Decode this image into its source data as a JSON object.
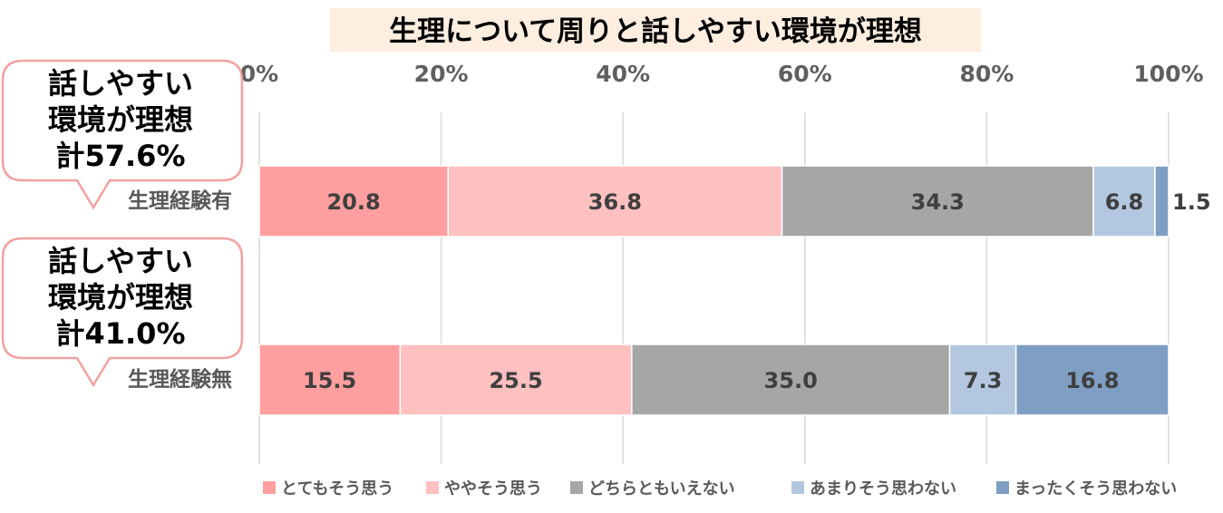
{
  "chart_data": {
    "type": "bar",
    "orientation": "horizontal",
    "stacked": "percent",
    "title": "生理について周りと話しやすい環境が理想",
    "categories": [
      "生理経験有",
      "生理経験無"
    ],
    "series": [
      {
        "name": "とてもそう思う",
        "color": "#ff9f9f",
        "values": [
          20.8,
          15.5
        ]
      },
      {
        "name": "ややそう思う",
        "color": "#ffc0c0",
        "values": [
          36.8,
          25.5
        ]
      },
      {
        "name": "どちらともいえない",
        "color": "#a6a6a6",
        "values": [
          34.3,
          35.0
        ]
      },
      {
        "name": "あまりそう思わない",
        "color": "#b4c7e0",
        "values": [
          6.8,
          7.3
        ]
      },
      {
        "name": "まったくそう思わない",
        "color": "#7f9ec4",
        "values": [
          1.5,
          16.8
        ]
      }
    ],
    "value_labels": [
      [
        "20.8",
        "36.8",
        "34.3",
        "6.8",
        "1.5"
      ],
      [
        "15.5",
        "25.5",
        "35.0",
        "7.3",
        "16.8"
      ]
    ],
    "xlim": [
      0,
      100
    ],
    "x_ticks": [
      "0%",
      "20%",
      "40%",
      "60%",
      "80%",
      "100%"
    ],
    "x_tick_values": [
      0,
      20,
      40,
      60,
      80,
      100
    ],
    "grid": true,
    "legend": "bottom",
    "callouts": [
      {
        "lines": [
          "話しやすい",
          "環境が理想",
          "計57.6%"
        ]
      },
      {
        "lines": [
          "話しやすい",
          "環境が理想",
          "計41.0%"
        ]
      }
    ]
  }
}
